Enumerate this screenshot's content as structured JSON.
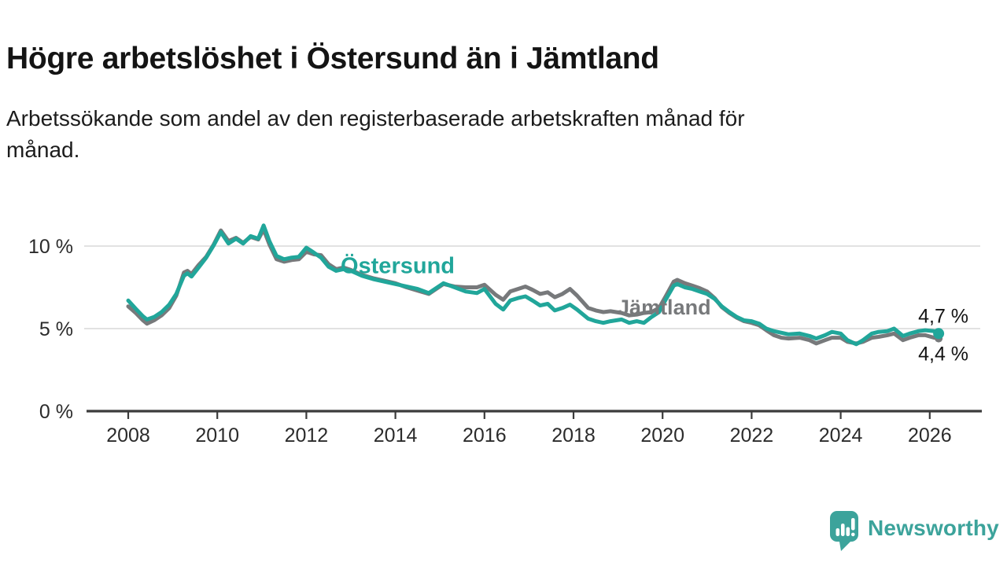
{
  "header": {
    "title": "Högre arbetslöshet i Östersund än i Jämtland",
    "subtitle": "Arbetssökande som andel av den registerbaserade arbetskraften månad för månad.",
    "subtitle_lines": [
      "Arbetssökande som andel av den registerbaserade arbetskraften månad för",
      "månad."
    ]
  },
  "chart_data": {
    "type": "line",
    "title": "Högre arbetslöshet i Östersund än i Jämtland",
    "subtitle": "Arbetssökande som andel av den registerbaserade arbetskraften månad för månad.",
    "unit": "%",
    "grid": "horizontal",
    "legend_position": "inline-labels",
    "x_axis": {
      "label": "",
      "ticks": [
        2008,
        2010,
        2012,
        2014,
        2016,
        2018,
        2020,
        2022,
        2024,
        2026
      ],
      "range": [
        2007.1,
        2027.2
      ]
    },
    "y_axis": {
      "label": "",
      "ticks": [
        0,
        5,
        10
      ],
      "tick_labels": [
        "0 %",
        "5 %",
        "10 %"
      ],
      "range": [
        0,
        12.6
      ]
    },
    "colors": {
      "ostersund": "#21a69a",
      "jamtland": "#77797b",
      "grid": "#d8d8d8",
      "axis": "#3b3b3b",
      "tick_text": "#2b2b2b",
      "end_label_text": "#141414"
    },
    "series": [
      {
        "name": "Jämtland",
        "color": "#77797b",
        "stroke_width": 5,
        "end_dot_radius": 5,
        "end_value_label": "4,4 %",
        "inline_label": {
          "text": "Jämtland",
          "x": 2018.99,
          "y": 5.85,
          "font_size": 27
        },
        "points": [
          [
            2008.0,
            6.35
          ],
          [
            2008.17,
            5.95
          ],
          [
            2008.33,
            5.5
          ],
          [
            2008.42,
            5.3
          ],
          [
            2008.58,
            5.5
          ],
          [
            2008.75,
            5.8
          ],
          [
            2008.92,
            6.25
          ],
          [
            2009.08,
            7.0
          ],
          [
            2009.25,
            8.4
          ],
          [
            2009.33,
            8.5
          ],
          [
            2009.42,
            8.3
          ],
          [
            2009.58,
            8.85
          ],
          [
            2009.75,
            9.35
          ],
          [
            2009.92,
            10.1
          ],
          [
            2010.08,
            10.95
          ],
          [
            2010.25,
            10.3
          ],
          [
            2010.42,
            10.5
          ],
          [
            2010.58,
            10.2
          ],
          [
            2010.75,
            10.55
          ],
          [
            2010.92,
            10.4
          ],
          [
            2011.04,
            11.0
          ],
          [
            2011.17,
            10.1
          ],
          [
            2011.33,
            9.2
          ],
          [
            2011.5,
            9.05
          ],
          [
            2011.67,
            9.15
          ],
          [
            2011.83,
            9.2
          ],
          [
            2012.0,
            9.65
          ],
          [
            2012.17,
            9.5
          ],
          [
            2012.33,
            9.45
          ],
          [
            2012.5,
            8.9
          ],
          [
            2012.67,
            8.6
          ],
          [
            2012.83,
            8.7
          ],
          [
            2013.0,
            8.55
          ],
          [
            2013.25,
            8.25
          ],
          [
            2013.5,
            8.05
          ],
          [
            2013.75,
            7.9
          ],
          [
            2014.0,
            7.75
          ],
          [
            2014.25,
            7.5
          ],
          [
            2014.5,
            7.3
          ],
          [
            2014.75,
            7.1
          ],
          [
            2015.08,
            7.7
          ],
          [
            2015.33,
            7.55
          ],
          [
            2015.58,
            7.5
          ],
          [
            2015.83,
            7.5
          ],
          [
            2016.0,
            7.65
          ],
          [
            2016.25,
            7.05
          ],
          [
            2016.42,
            6.75
          ],
          [
            2016.58,
            7.25
          ],
          [
            2016.75,
            7.4
          ],
          [
            2016.92,
            7.55
          ],
          [
            2017.08,
            7.35
          ],
          [
            2017.25,
            7.1
          ],
          [
            2017.42,
            7.2
          ],
          [
            2017.58,
            6.9
          ],
          [
            2017.75,
            7.1
          ],
          [
            2017.92,
            7.4
          ],
          [
            2018.08,
            7.0
          ],
          [
            2018.33,
            6.25
          ],
          [
            2018.5,
            6.1
          ],
          [
            2018.67,
            6.0
          ],
          [
            2018.83,
            6.05
          ],
          [
            2019.08,
            5.95
          ],
          [
            2019.25,
            5.8
          ],
          [
            2019.42,
            5.85
          ],
          [
            2019.58,
            5.95
          ],
          [
            2019.75,
            6.0
          ],
          [
            2019.92,
            6.25
          ],
          [
            2020.08,
            7.0
          ],
          [
            2020.25,
            7.85
          ],
          [
            2020.33,
            7.95
          ],
          [
            2020.5,
            7.75
          ],
          [
            2020.67,
            7.6
          ],
          [
            2020.83,
            7.45
          ],
          [
            2021.0,
            7.25
          ],
          [
            2021.17,
            6.85
          ],
          [
            2021.33,
            6.3
          ],
          [
            2021.5,
            5.95
          ],
          [
            2021.67,
            5.65
          ],
          [
            2021.83,
            5.45
          ],
          [
            2022.0,
            5.35
          ],
          [
            2022.17,
            5.2
          ],
          [
            2022.33,
            4.9
          ],
          [
            2022.5,
            4.6
          ],
          [
            2022.67,
            4.45
          ],
          [
            2022.83,
            4.4
          ],
          [
            2023.08,
            4.45
          ],
          [
            2023.3,
            4.3
          ],
          [
            2023.45,
            4.1
          ],
          [
            2023.65,
            4.3
          ],
          [
            2023.8,
            4.45
          ],
          [
            2024.0,
            4.45
          ],
          [
            2024.15,
            4.2
          ],
          [
            2024.35,
            4.1
          ],
          [
            2024.5,
            4.2
          ],
          [
            2024.7,
            4.45
          ],
          [
            2024.85,
            4.5
          ],
          [
            2025.05,
            4.6
          ],
          [
            2025.2,
            4.7
          ],
          [
            2025.4,
            4.3
          ],
          [
            2025.55,
            4.45
          ],
          [
            2025.75,
            4.6
          ],
          [
            2025.9,
            4.6
          ],
          [
            2026.1,
            4.45
          ],
          [
            2026.2,
            4.4
          ]
        ]
      },
      {
        "name": "Östersund",
        "color": "#21a69a",
        "stroke_width": 5,
        "end_dot_radius": 7,
        "end_value_label": "4,7 %",
        "inline_label": {
          "text": "Östersund",
          "x": 2012.77,
          "y": 8.35,
          "font_size": 29
        },
        "points": [
          [
            2008.0,
            6.7
          ],
          [
            2008.17,
            6.2
          ],
          [
            2008.33,
            5.75
          ],
          [
            2008.42,
            5.55
          ],
          [
            2008.58,
            5.7
          ],
          [
            2008.75,
            6.0
          ],
          [
            2008.92,
            6.45
          ],
          [
            2009.08,
            7.1
          ],
          [
            2009.25,
            8.2
          ],
          [
            2009.33,
            8.35
          ],
          [
            2009.42,
            8.15
          ],
          [
            2009.58,
            8.7
          ],
          [
            2009.75,
            9.3
          ],
          [
            2009.92,
            10.05
          ],
          [
            2010.08,
            10.85
          ],
          [
            2010.25,
            10.15
          ],
          [
            2010.42,
            10.45
          ],
          [
            2010.58,
            10.15
          ],
          [
            2010.75,
            10.6
          ],
          [
            2010.92,
            10.45
          ],
          [
            2011.04,
            11.25
          ],
          [
            2011.17,
            10.3
          ],
          [
            2011.33,
            9.4
          ],
          [
            2011.5,
            9.2
          ],
          [
            2011.67,
            9.3
          ],
          [
            2011.83,
            9.35
          ],
          [
            2012.0,
            9.9
          ],
          [
            2012.17,
            9.6
          ],
          [
            2012.33,
            9.3
          ],
          [
            2012.5,
            8.75
          ],
          [
            2012.67,
            8.5
          ],
          [
            2012.83,
            8.6
          ],
          [
            2013.0,
            8.5
          ],
          [
            2013.25,
            8.2
          ],
          [
            2013.5,
            8.0
          ],
          [
            2013.75,
            7.85
          ],
          [
            2014.0,
            7.7
          ],
          [
            2014.25,
            7.55
          ],
          [
            2014.5,
            7.4
          ],
          [
            2014.75,
            7.15
          ],
          [
            2015.08,
            7.75
          ],
          [
            2015.33,
            7.5
          ],
          [
            2015.58,
            7.25
          ],
          [
            2015.83,
            7.15
          ],
          [
            2016.0,
            7.4
          ],
          [
            2016.25,
            6.5
          ],
          [
            2016.42,
            6.15
          ],
          [
            2016.58,
            6.7
          ],
          [
            2016.75,
            6.85
          ],
          [
            2016.92,
            6.95
          ],
          [
            2017.08,
            6.7
          ],
          [
            2017.25,
            6.4
          ],
          [
            2017.42,
            6.5
          ],
          [
            2017.58,
            6.1
          ],
          [
            2017.75,
            6.25
          ],
          [
            2017.92,
            6.45
          ],
          [
            2018.08,
            6.15
          ],
          [
            2018.33,
            5.6
          ],
          [
            2018.5,
            5.45
          ],
          [
            2018.67,
            5.35
          ],
          [
            2018.83,
            5.45
          ],
          [
            2019.08,
            5.55
          ],
          [
            2019.25,
            5.35
          ],
          [
            2019.42,
            5.45
          ],
          [
            2019.58,
            5.35
          ],
          [
            2019.75,
            5.7
          ],
          [
            2019.92,
            6.0
          ],
          [
            2020.08,
            6.8
          ],
          [
            2020.25,
            7.6
          ],
          [
            2020.33,
            7.7
          ],
          [
            2020.5,
            7.5
          ],
          [
            2020.67,
            7.4
          ],
          [
            2020.83,
            7.25
          ],
          [
            2021.0,
            7.1
          ],
          [
            2021.17,
            6.8
          ],
          [
            2021.33,
            6.35
          ],
          [
            2021.5,
            6.0
          ],
          [
            2021.67,
            5.7
          ],
          [
            2021.83,
            5.5
          ],
          [
            2022.0,
            5.45
          ],
          [
            2022.17,
            5.3
          ],
          [
            2022.33,
            5.0
          ],
          [
            2022.5,
            4.85
          ],
          [
            2022.67,
            4.75
          ],
          [
            2022.83,
            4.65
          ],
          [
            2023.08,
            4.7
          ],
          [
            2023.3,
            4.55
          ],
          [
            2023.45,
            4.4
          ],
          [
            2023.65,
            4.6
          ],
          [
            2023.8,
            4.8
          ],
          [
            2024.0,
            4.7
          ],
          [
            2024.15,
            4.3
          ],
          [
            2024.35,
            4.05
          ],
          [
            2024.5,
            4.3
          ],
          [
            2024.7,
            4.7
          ],
          [
            2024.85,
            4.8
          ],
          [
            2025.05,
            4.85
          ],
          [
            2025.2,
            5.0
          ],
          [
            2025.4,
            4.55
          ],
          [
            2025.55,
            4.7
          ],
          [
            2025.75,
            4.85
          ],
          [
            2025.9,
            4.9
          ],
          [
            2026.1,
            4.85
          ],
          [
            2026.2,
            4.7
          ]
        ]
      }
    ],
    "end_labels": [
      {
        "text": "4,7 %",
        "series": "Östersund"
      },
      {
        "text": "4,4 %",
        "series": "Jämtland"
      }
    ]
  },
  "footer": {
    "brand": "Newsworthy",
    "logo_icon": "newsworthy-bubble-chart-icon",
    "brand_color": "#3ca39b"
  }
}
